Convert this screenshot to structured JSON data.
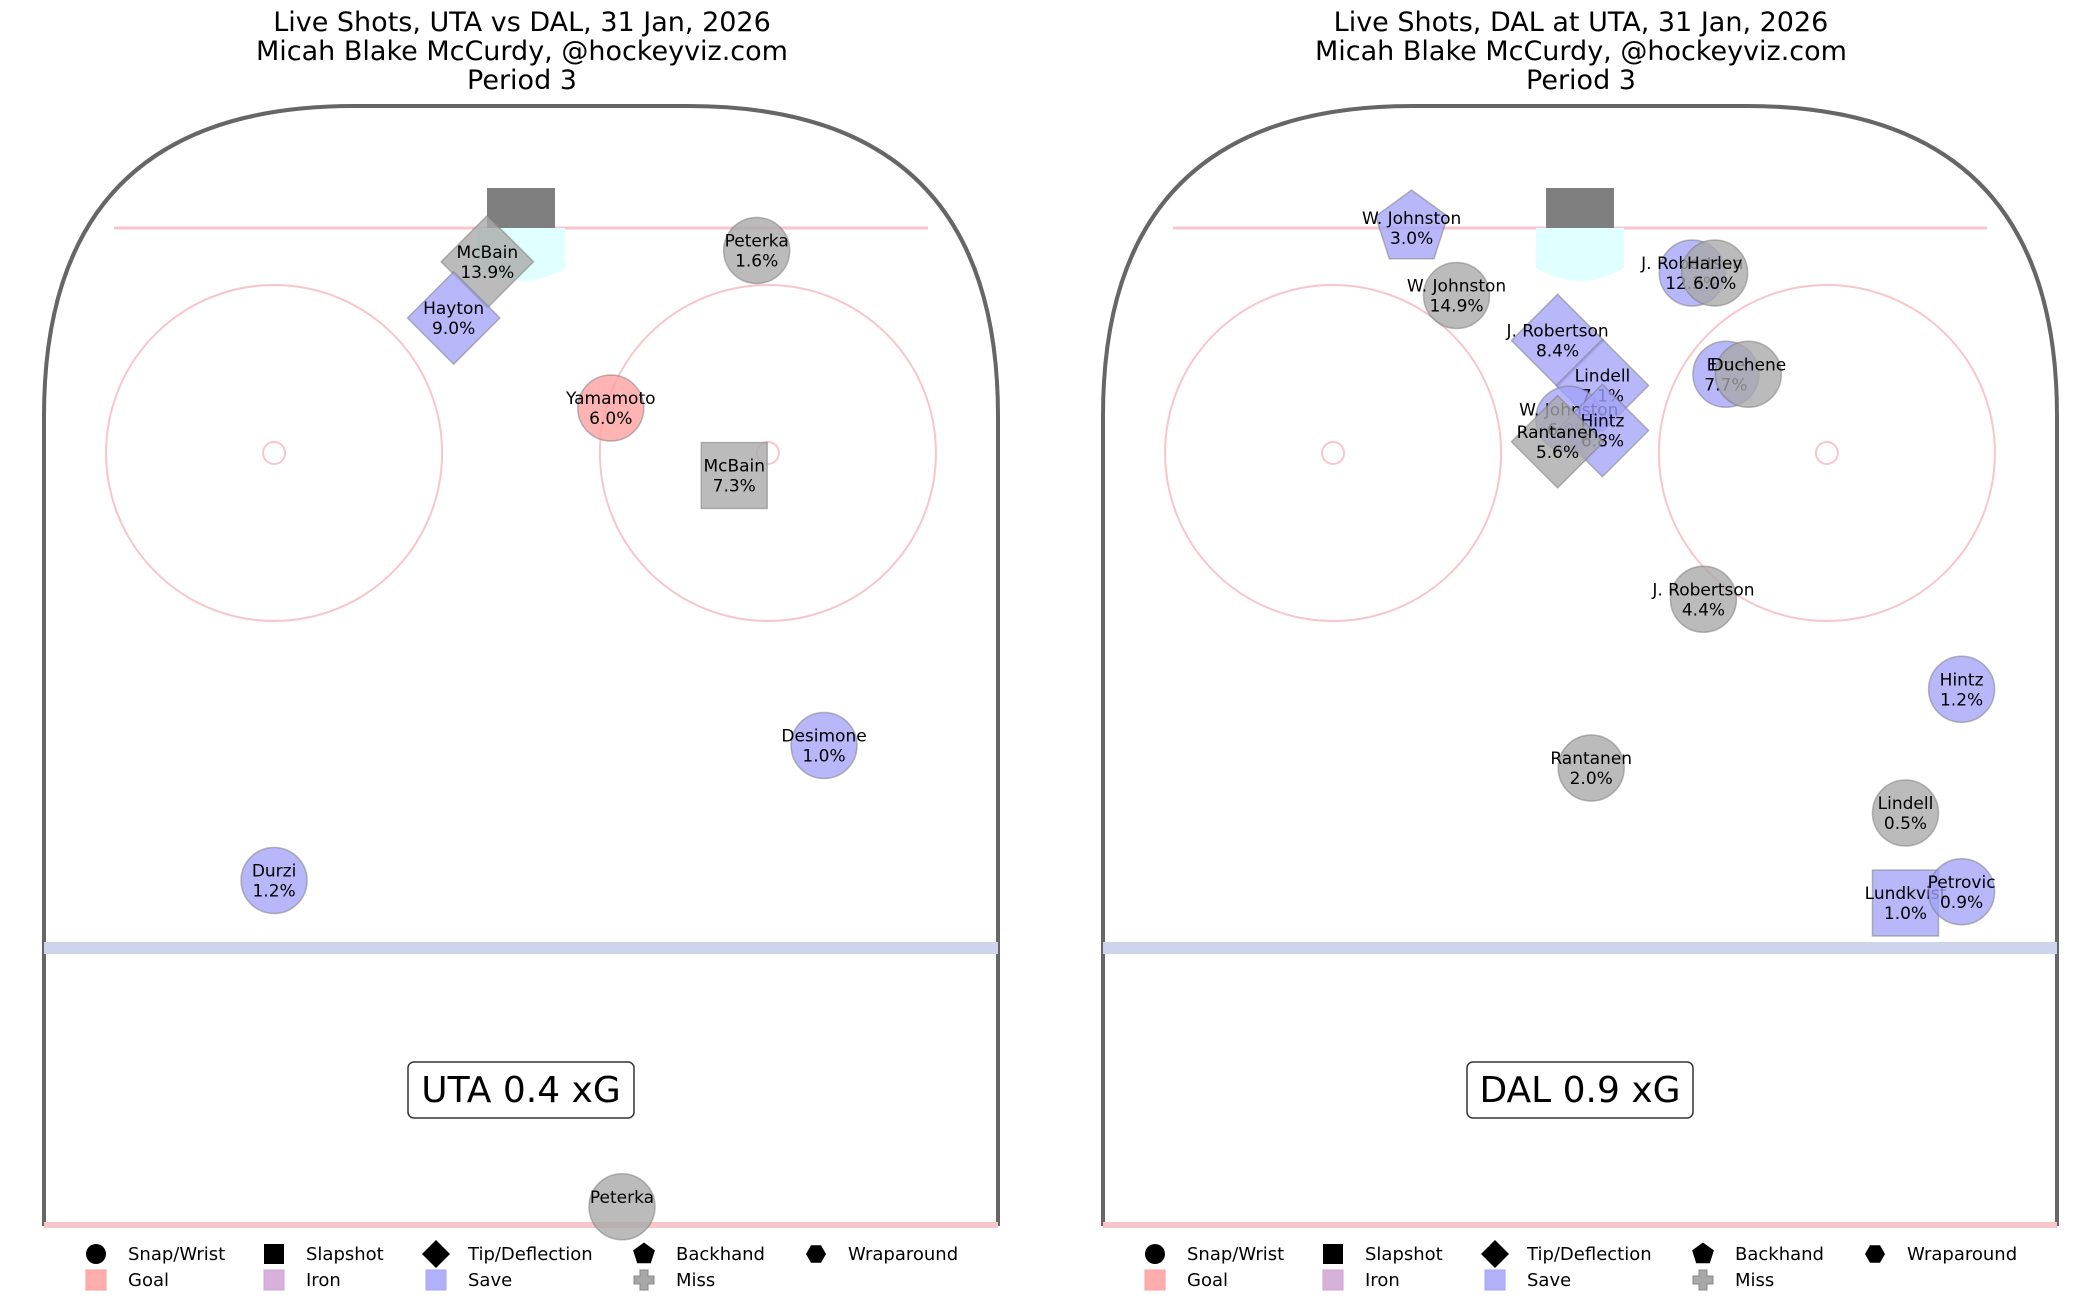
{
  "colors": {
    "rink_border": "#666666",
    "red_line": "#f6c6cc",
    "blue_line": "#ccd4ee",
    "crease": "#e0ffff",
    "net": "#7f7f7f",
    "faceoff": "#f6c6cc",
    "goal": "#ff9f9f",
    "iron": "#d1a3d3",
    "save": "#a3a3f8",
    "miss": "#a8a8a8",
    "marker_black": "#000000"
  },
  "legend": {
    "shot_types": [
      "Snap/Wrist",
      "Slapshot",
      "Tip/Deflection",
      "Backhand",
      "Wraparound"
    ],
    "outcomes": [
      "Goal",
      "Iron",
      "Save",
      "Miss"
    ],
    "shot_type_icons": [
      "circle-icon",
      "square-icon",
      "diamond-icon",
      "pentagon-icon",
      "hexagon-icon"
    ],
    "outcome_icons": [
      "square-icon",
      "square-icon",
      "square-icon",
      "plus-icon"
    ]
  },
  "chart_data": [
    {
      "type": "scatter",
      "title": "Live Shots, UTA vs DAL, 31 Jan, 2026",
      "subtitle": "Micah Blake McCurdy, @hockeyviz.com",
      "period": "Period 3",
      "xg_label": "UTA 0.4 xG",
      "shots": [
        {
          "player": "McBain",
          "xg": "13.9%",
          "shot_type": "tip",
          "outcome": "miss",
          "x": -3,
          "y": 86
        },
        {
          "player": "Hayton",
          "xg": "9.0%",
          "shot_type": "tip",
          "outcome": "save",
          "x": -6,
          "y": 81
        },
        {
          "player": "Peterka",
          "xg": "1.6%",
          "shot_type": "snap",
          "outcome": "miss",
          "x": 21,
          "y": 87
        },
        {
          "player": "Yamamoto",
          "xg": "6.0%",
          "shot_type": "snap",
          "outcome": "goal",
          "x": 8,
          "y": 73
        },
        {
          "player": "McBain",
          "xg": "7.3%",
          "shot_type": "slap",
          "outcome": "miss",
          "x": 19,
          "y": 67
        },
        {
          "player": "Desimone",
          "xg": "1.0%",
          "shot_type": "snap",
          "outcome": "save",
          "x": 27,
          "y": 43
        },
        {
          "player": "Durzi",
          "xg": "1.2%",
          "shot_type": "snap",
          "outcome": "save",
          "x": -22,
          "y": 31
        },
        {
          "player": "Peterka",
          "xg": "",
          "shot_type": "snap",
          "outcome": "miss",
          "x": 9,
          "y": 2
        }
      ]
    },
    {
      "type": "scatter",
      "title": "Live Shots, DAL at UTA, 31 Jan, 2026",
      "subtitle": "Micah Blake McCurdy, @hockeyviz.com",
      "period": "Period 3",
      "xg_label": "DAL 0.9 xG",
      "shots": [
        {
          "player": "W. Johnston",
          "xg": "3.0%",
          "shot_type": "backhand",
          "outcome": "save",
          "x": -15,
          "y": 89
        },
        {
          "player": "W. Johnston",
          "xg": "14.9%",
          "shot_type": "snap",
          "outcome": "miss",
          "x": -11,
          "y": 83
        },
        {
          "player": "J. Robertson",
          "xg": "8.4%",
          "shot_type": "tip",
          "outcome": "save",
          "x": -2,
          "y": 79
        },
        {
          "player": "Lindell",
          "xg": "7.1%",
          "shot_type": "tip",
          "outcome": "save",
          "x": 2,
          "y": 75
        },
        {
          "player": "W. Johnston",
          "xg": "6.0%",
          "shot_type": "snap",
          "outcome": "save",
          "x": -1,
          "y": 72
        },
        {
          "player": "Hintz",
          "xg": "6.8%",
          "shot_type": "tip",
          "outcome": "save",
          "x": 2,
          "y": 71
        },
        {
          "player": "Rantanen",
          "xg": "5.6%",
          "shot_type": "tip",
          "outcome": "miss",
          "x": -2,
          "y": 70
        },
        {
          "player": "J. Robertson",
          "xg": "12.3%",
          "shot_type": "snap",
          "outcome": "save",
          "x": 10,
          "y": 85
        },
        {
          "player": "Harley",
          "xg": "6.0%",
          "shot_type": "snap",
          "outcome": "miss",
          "x": 12,
          "y": 85
        },
        {
          "player": "Erne",
          "xg": "7.7%",
          "shot_type": "snap",
          "outcome": "save",
          "x": 13,
          "y": 76
        },
        {
          "player": "Duchene",
          "xg": "",
          "shot_type": "snap",
          "outcome": "miss",
          "x": 15,
          "y": 76
        },
        {
          "player": "J. Robertson",
          "xg": "4.4%",
          "shot_type": "snap",
          "outcome": "miss",
          "x": 11,
          "y": 56
        },
        {
          "player": "Rantanen",
          "xg": "2.0%",
          "shot_type": "snap",
          "outcome": "miss",
          "x": 1,
          "y": 41
        },
        {
          "player": "Hintz",
          "xg": "1.2%",
          "shot_type": "snap",
          "outcome": "save",
          "x": 34,
          "y": 48
        },
        {
          "player": "Lindell",
          "xg": "0.5%",
          "shot_type": "snap",
          "outcome": "miss",
          "x": 29,
          "y": 37
        },
        {
          "player": "Lundkvist",
          "xg": "1.0%",
          "shot_type": "slap",
          "outcome": "save",
          "x": 29,
          "y": 29
        },
        {
          "player": "Petrovic",
          "xg": "0.9%",
          "shot_type": "snap",
          "outcome": "save",
          "x": 34,
          "y": 30
        }
      ]
    }
  ]
}
